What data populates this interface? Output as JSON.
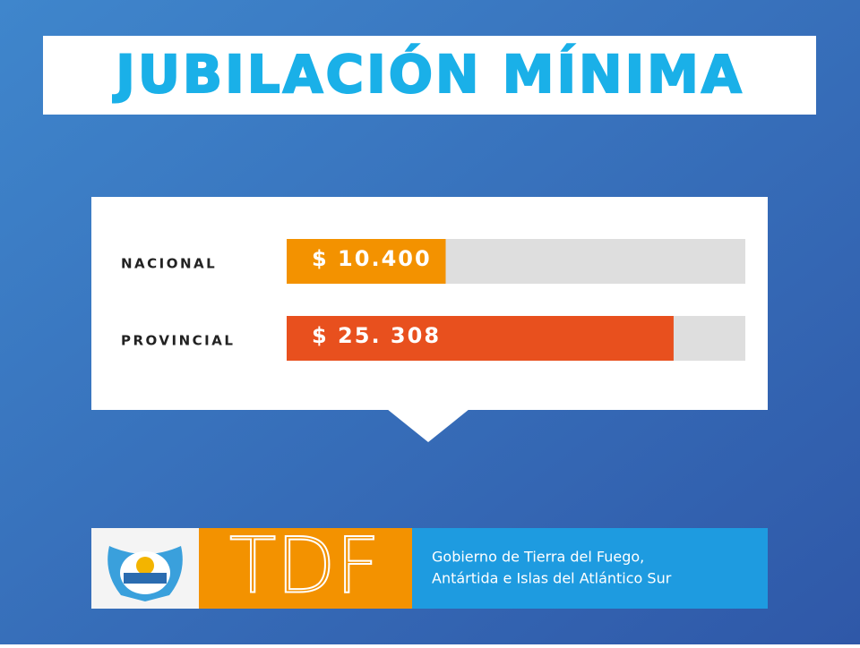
{
  "chart_data": {
    "type": "bar",
    "orientation": "horizontal",
    "title": "JUBILACIÓN MÍNIMA",
    "categories": [
      "NACIONAL",
      "PROVINCIAL"
    ],
    "values": [
      10400,
      25308
    ],
    "value_labels": [
      "$ 10.400",
      "$ 25. 308"
    ],
    "colors": [
      "#f39200",
      "#e8501e"
    ],
    "xlim": [
      0,
      30000
    ]
  },
  "footer": {
    "logo_text": "TDF",
    "lines": [
      "Gobierno de Tierra del Fuego,",
      "Antártida e Islas del Atlántico Sur"
    ]
  }
}
